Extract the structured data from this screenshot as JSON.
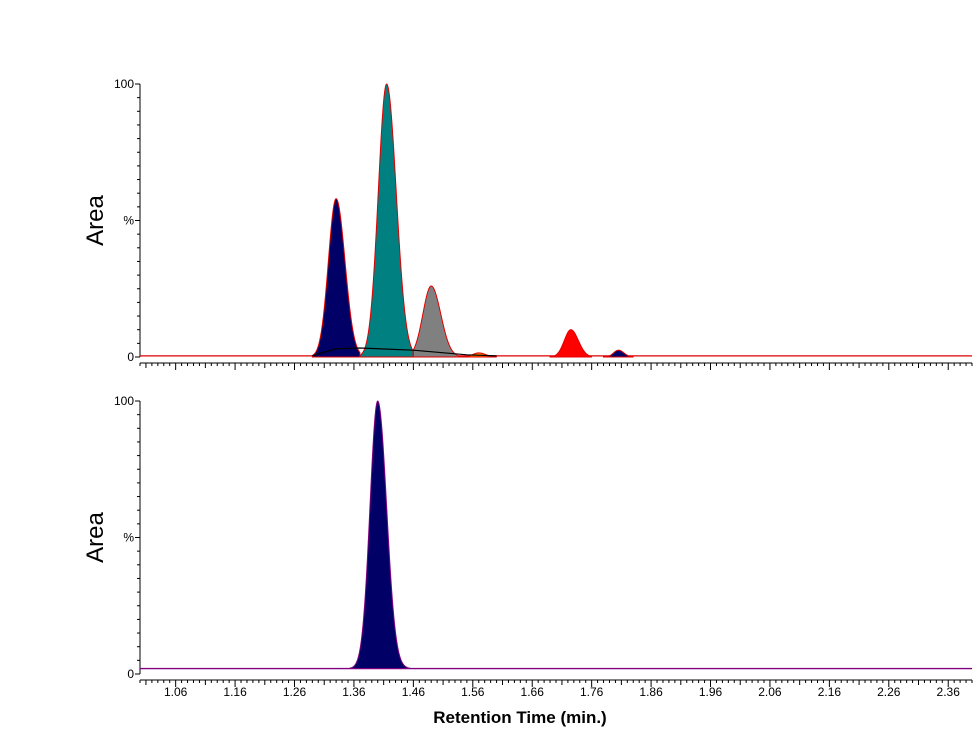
{
  "chart_data": [
    {
      "type": "area",
      "ylabel": "Area",
      "y_ticks": [
        "100",
        "%",
        "0"
      ],
      "ylim": [
        0,
        100
      ],
      "xlim": [
        1.0,
        2.4
      ],
      "series": [
        {
          "fill": "#000066",
          "outline": "#e00000",
          "peak_x": 1.33,
          "peak_y": 58,
          "width": 0.013,
          "baseline_start": 1.29,
          "baseline_end": 1.37
        },
        {
          "fill": "#008080",
          "outline": "#e00000",
          "peak_x": 1.415,
          "peak_y": 100,
          "width": 0.014,
          "baseline_start": 1.37,
          "baseline_end": 1.46
        },
        {
          "fill": "#808080",
          "outline": "#e00000",
          "peak_x": 1.49,
          "peak_y": 26,
          "width": 0.014,
          "baseline_start": 1.46,
          "baseline_end": 1.55
        },
        {
          "fill": "#ff8000",
          "outline": "#e00000",
          "peak_x": 1.57,
          "peak_y": 1.5,
          "width": 0.01,
          "baseline_start": 1.55,
          "baseline_end": 1.6
        },
        {
          "fill": "#ff0000",
          "outline": "#e00000",
          "peak_x": 1.725,
          "peak_y": 10,
          "width": 0.011,
          "baseline_start": 1.69,
          "baseline_end": 1.76
        },
        {
          "fill": "#000066",
          "outline": "#e00000",
          "peak_x": 1.805,
          "peak_y": 2.5,
          "width": 0.008,
          "baseline_start": 1.78,
          "baseline_end": 1.83
        }
      ]
    },
    {
      "type": "area",
      "ylabel": "Area",
      "y_ticks": [
        "100",
        "%",
        "0"
      ],
      "ylim": [
        0,
        100
      ],
      "xlim": [
        1.0,
        2.4
      ],
      "xlabel": "Retention Time (min.)",
      "x_ticks": [
        "1.06",
        "1.16",
        "1.26",
        "1.36",
        "1.46",
        "1.56",
        "1.66",
        "1.76",
        "1.86",
        "1.96",
        "2.06",
        "2.16",
        "2.26",
        "2.36"
      ],
      "series": [
        {
          "fill": "#000066",
          "outline": "#800080",
          "peak_x": 1.4,
          "peak_y": 100,
          "width": 0.013,
          "baseline": 2
        }
      ]
    }
  ]
}
